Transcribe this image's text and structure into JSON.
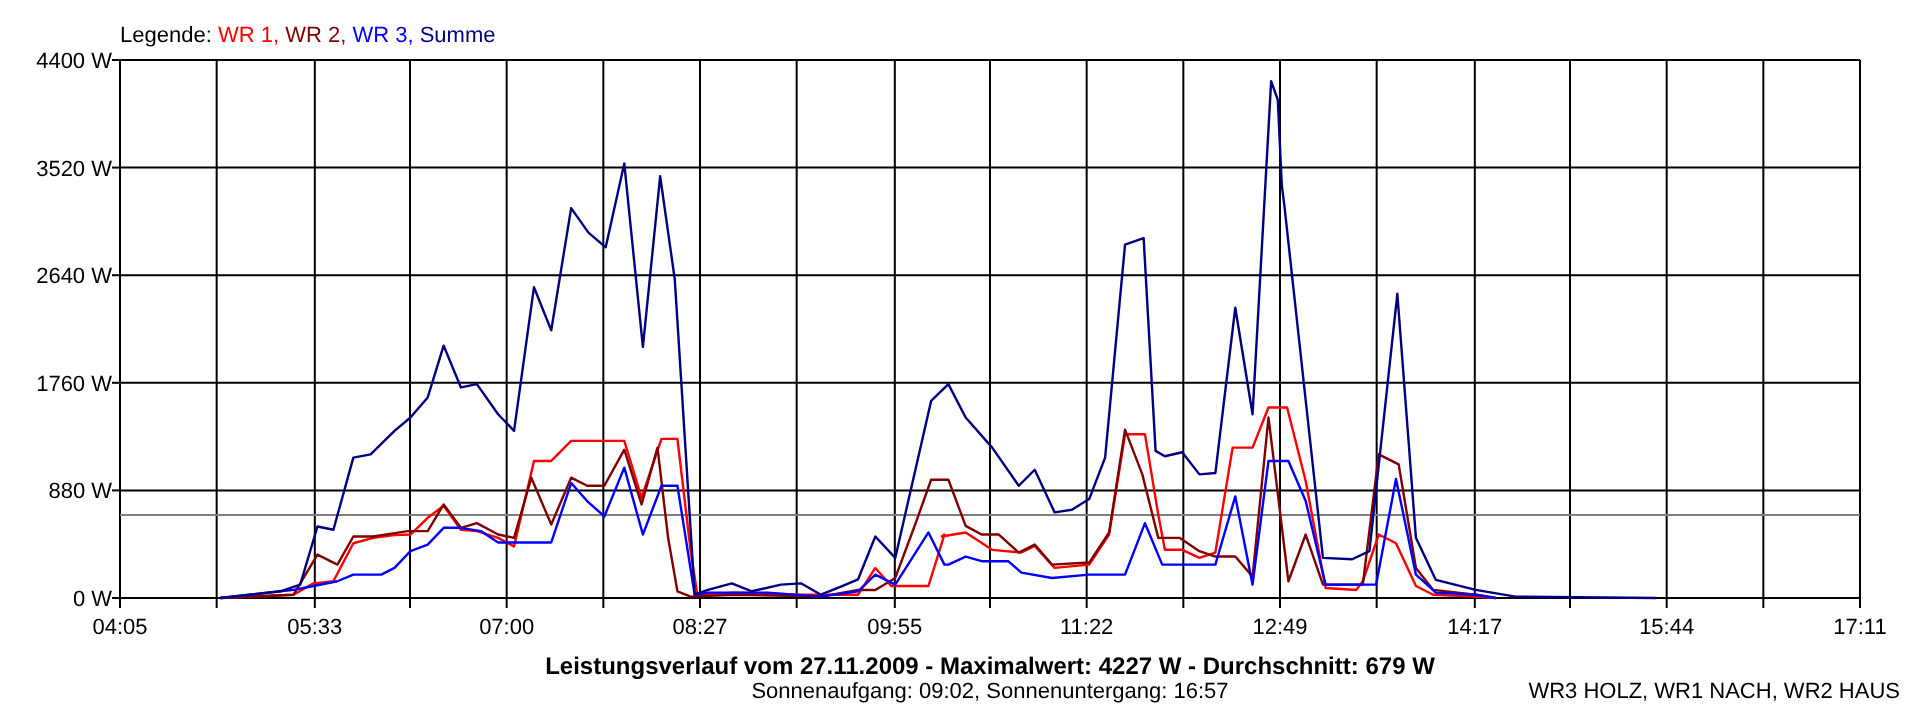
{
  "chart_data": {
    "type": "line",
    "title": "Leistungsverlauf vom 27.11.2009 - Maximalwert: 4227 W - Durchschnitt: 679 W",
    "subtitle": "Sonnenaufgang: 09:02, Sonnenuntergang: 16:57",
    "legend_title": "Legende:",
    "annotations": [
      "WR3 HOLZ, WR1 NACH, WR2 HAUS"
    ],
    "xlim": [
      4.0833,
      17.1833
    ],
    "xticks": [
      {
        "value": 4.0833,
        "label": "04:05"
      },
      {
        "value": 4.8111,
        "label": null
      },
      {
        "value": 5.55,
        "label": "05:33"
      },
      {
        "value": 6.2667,
        "label": null
      },
      {
        "value": 6.9944,
        "label": "07:00"
      },
      {
        "value": 7.7222,
        "label": null
      },
      {
        "value": 8.45,
        "label": "08:27"
      },
      {
        "value": 9.1778,
        "label": null
      },
      {
        "value": 9.9167,
        "label": "09:55"
      },
      {
        "value": 10.6333,
        "label": null
      },
      {
        "value": 11.3611,
        "label": "11:22"
      },
      {
        "value": 12.0889,
        "label": null
      },
      {
        "value": 12.8167,
        "label": "12:49"
      },
      {
        "value": 13.5444,
        "label": null
      },
      {
        "value": 14.2833,
        "label": "14:17"
      },
      {
        "value": 15.0,
        "label": null
      },
      {
        "value": 15.7278,
        "label": "15:44"
      },
      {
        "value": 16.4556,
        "label": null
      },
      {
        "value": 17.1833,
        "label": "17:11"
      }
    ],
    "ylim": [
      0,
      4400
    ],
    "yticks": [
      {
        "value": 0,
        "label": "0 W"
      },
      {
        "value": 880,
        "label": "880 W"
      },
      {
        "value": 1760,
        "label": "1760 W"
      },
      {
        "value": 2640,
        "label": "2640 W"
      },
      {
        "value": 3520,
        "label": "3520 W"
      },
      {
        "value": 4400,
        "label": "4400 W"
      }
    ],
    "grid": true,
    "legend": "top left",
    "marker": "none",
    "line_style": "solid",
    "ref_lines": [
      {
        "axis": "y",
        "value": 679,
        "color": "#808080"
      }
    ],
    "series": [
      {
        "name": "WR 1,",
        "color": "#ff0000",
        "x": [
          4.84,
          5.39,
          5.54,
          5.69,
          5.84,
          5.99,
          6.15,
          6.27,
          6.4,
          6.52,
          6.65,
          6.77,
          6.93,
          7.05,
          7.2,
          7.33,
          7.48,
          7.88,
          8.01,
          8.16,
          8.28,
          8.38,
          8.43,
          8.71,
          9.21,
          9.64,
          9.77,
          9.89,
          10.17,
          10.29,
          10.27,
          10.45,
          10.65,
          10.87,
          10.97,
          11.12,
          11.38,
          11.53,
          11.65,
          11.8,
          11.9,
          11.95,
          12.08,
          12.21,
          12.33,
          12.46,
          12.61,
          12.73,
          12.87,
          13.01,
          13.16,
          13.39,
          13.44,
          13.56,
          13.69,
          13.84,
          13.97,
          14.29,
          14.44
        ],
        "values": [
          0,
          27,
          120,
          137,
          448,
          492,
          514,
          519,
          656,
          754,
          558,
          547,
          492,
          421,
          1121,
          1121,
          1285,
          1285,
          820,
          1301,
          1301,
          383,
          27,
          44,
          27,
          27,
          246,
          98,
          98,
          519,
          503,
          536,
          394,
          372,
          426,
          246,
          273,
          519,
          1339,
          1339,
          683,
          394,
          394,
          328,
          372,
          1230,
          1230,
          1558,
          1558,
          957,
          82,
          66,
          137,
          519,
          448,
          98,
          27,
          11,
          0
        ]
      },
      {
        "name": "WR 2,",
        "color": "#800000",
        "x": [
          4.84,
          5.39,
          5.57,
          5.72,
          5.84,
          5.99,
          6.25,
          6.4,
          6.52,
          6.65,
          6.77,
          6.93,
          7.05,
          7.18,
          7.33,
          7.48,
          7.6,
          7.73,
          7.88,
          8.01,
          8.13,
          8.21,
          8.28,
          8.38,
          8.71,
          9.36,
          9.64,
          9.77,
          9.92,
          10.07,
          10.19,
          10.32,
          10.45,
          10.57,
          10.7,
          10.85,
          10.97,
          11.1,
          11.38,
          11.53,
          11.65,
          11.78,
          11.9,
          12.06,
          12.21,
          12.33,
          12.48,
          12.61,
          12.73,
          12.81,
          12.88,
          13.01,
          13.14,
          13.44,
          13.56,
          13.71,
          13.84,
          13.97,
          14.29,
          14.44
        ],
        "values": [
          0,
          27,
          355,
          273,
          503,
          503,
          547,
          547,
          765,
          574,
          612,
          519,
          492,
          984,
          601,
          984,
          918,
          918,
          1213,
          765,
          1230,
          492,
          55,
          11,
          27,
          11,
          66,
          66,
          164,
          601,
          967,
          967,
          590,
          519,
          519,
          372,
          437,
          273,
          290,
          536,
          1377,
          1011,
          492,
          492,
          383,
          339,
          339,
          175,
          1476,
          765,
          137,
          519,
          109,
          109,
          1175,
          1093,
          246,
          66,
          27,
          0
        ]
      },
      {
        "name": "WR 3,",
        "color": "#0000ff",
        "x": [
          4.84,
          5.39,
          5.54,
          5.72,
          5.84,
          6.05,
          6.15,
          6.27,
          6.4,
          6.52,
          6.65,
          6.8,
          6.93,
          7.33,
          7.48,
          7.6,
          7.73,
          7.88,
          8.02,
          8.16,
          8.28,
          8.41,
          8.51,
          8.96,
          9.36,
          9.64,
          9.77,
          9.92,
          10.17,
          10.29,
          10.32,
          10.45,
          10.57,
          10.77,
          10.87,
          11.1,
          11.38,
          11.65,
          11.8,
          11.93,
          12.33,
          12.48,
          12.61,
          12.73,
          12.88,
          13.01,
          13.16,
          13.54,
          13.69,
          13.84,
          13.99,
          14.29,
          14.44
        ],
        "values": [
          0,
          66,
          98,
          137,
          191,
          191,
          246,
          383,
          437,
          574,
          574,
          547,
          454,
          454,
          940,
          793,
          667,
          1066,
          519,
          918,
          918,
          27,
          44,
          44,
          11,
          55,
          191,
          109,
          536,
          273,
          273,
          339,
          301,
          301,
          208,
          164,
          191,
          191,
          612,
          273,
          273,
          831,
          109,
          1121,
          1121,
          793,
          109,
          109,
          973,
          191,
          44,
          27,
          0
        ]
      },
      {
        "name": "Summe",
        "color": "#000080",
        "x": [
          4.84,
          5.29,
          5.44,
          5.57,
          5.69,
          5.84,
          5.97,
          6.15,
          6.27,
          6.4,
          6.52,
          6.65,
          6.77,
          6.93,
          7.05,
          7.2,
          7.33,
          7.48,
          7.61,
          7.74,
          7.88,
          8.02,
          8.15,
          8.26,
          8.41,
          8.51,
          8.69,
          8.84,
          9.06,
          9.21,
          9.36,
          9.52,
          9.64,
          9.77,
          9.92,
          10.19,
          10.32,
          10.45,
          10.65,
          10.85,
          10.97,
          11.12,
          11.25,
          11.38,
          11.5,
          11.65,
          11.79,
          11.88,
          11.95,
          12.08,
          12.21,
          12.33,
          12.48,
          12.61,
          12.75,
          12.8,
          12.83,
          12.85,
          13.14,
          13.36,
          13.49,
          13.7,
          13.84,
          13.99,
          14.29,
          14.59,
          15.65
        ],
        "values": [
          0,
          55,
          109,
          585,
          558,
          1148,
          1175,
          1367,
          1476,
          1640,
          2064,
          1722,
          1749,
          1503,
          1367,
          2542,
          2189,
          3189,
          2988,
          2868,
          3553,
          2053,
          3449,
          2607,
          30,
          66,
          120,
          55,
          109,
          120,
          27,
          98,
          153,
          503,
          328,
          1612,
          1749,
          1476,
          1230,
          918,
          1049,
          700,
          722,
          809,
          1148,
          2890,
          2944,
          1203,
          1159,
          1192,
          1011,
          1022,
          2374,
          1503,
          4227,
          4074,
          3379,
          3205,
          328,
          317,
          383,
          2488,
          492,
          148,
          66,
          11,
          0
        ]
      }
    ]
  }
}
